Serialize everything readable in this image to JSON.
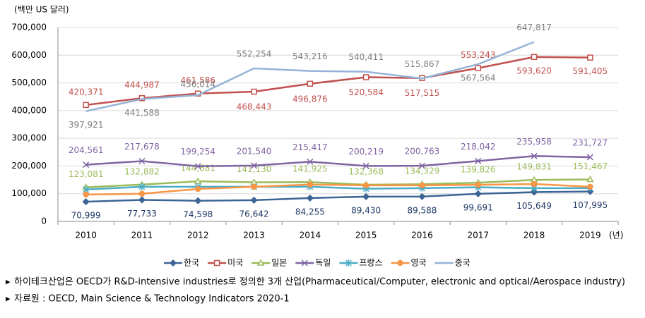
{
  "chart_data": {
    "type": "line",
    "y_unit": "(백만 US 달러)",
    "x_unit": "(년)",
    "categories": [
      "2010",
      "2011",
      "2012",
      "2013",
      "2014",
      "2015",
      "2016",
      "2017",
      "2018",
      "2019"
    ],
    "ylim": [
      0,
      700000
    ],
    "yticks": [
      0,
      {
        "value": 100000,
        "label": "100,000"
      },
      {
        "value": 200000,
        "label": "200,000"
      },
      {
        "value": 300000,
        "label": "300,000"
      },
      {
        "value": 400000,
        "label": "400,000"
      },
      {
        "value": 500000,
        "label": "500,000"
      },
      {
        "value": 600000,
        "label": "600,000"
      },
      {
        "value": 700000,
        "label": "700,000"
      }
    ],
    "grid": true,
    "legend": "bottom",
    "series": [
      {
        "name": "한국",
        "color": "#3c6496",
        "marker": "diamond",
        "values": [
          70999,
          77733,
          74598,
          76642,
          84255,
          89430,
          89588,
          99691,
          105649,
          107995
        ],
        "value_labels": [
          "70,999",
          "77,733",
          "74,598",
          "76,642",
          "84,255",
          "89,430",
          "89,588",
          "99,691",
          "105,649",
          "107,995"
        ]
      },
      {
        "name": "미국",
        "color": "#c0504d",
        "marker": "square",
        "values": [
          420371,
          444987,
          461586,
          468443,
          496876,
          520584,
          517515,
          553243,
          593620,
          591405
        ],
        "value_labels": [
          "420,371",
          "444,987",
          "461,586",
          "468,443",
          "496,876",
          "520,584",
          "517,515",
          "553,243",
          "593,620",
          "591,405"
        ]
      },
      {
        "name": "일본",
        "color": "#9bbb59",
        "marker": "triangle",
        "values": [
          123081,
          132882,
          144681,
          141130,
          141925,
          132368,
          134329,
          139826,
          149831,
          151467
        ],
        "value_labels": [
          "123,081",
          "132,882",
          "144,681",
          "141,130",
          "141,925",
          "132,368",
          "134,329",
          "139,826",
          "149,831",
          "151,467"
        ]
      },
      {
        "name": "독일",
        "color": "#8064a2",
        "marker": "x",
        "values": [
          204561,
          217678,
          199254,
          201540,
          215417,
          200219,
          200763,
          218042,
          235958,
          231727
        ],
        "value_labels": [
          "204,561",
          "217,678",
          "199,254",
          "201,540",
          "215,417",
          "200,219",
          "200,763",
          "218,042",
          "235,958",
          "231,727"
        ]
      },
      {
        "name": "프랑스",
        "color": "#4bacc6",
        "marker": "star",
        "values": [
          115000,
          125000,
          125000,
          125000,
          125000,
          118000,
          120000,
          123000,
          120000,
          120000
        ]
      },
      {
        "name": "영국",
        "color": "#f79646",
        "marker": "circle",
        "values": [
          97000,
          100000,
          117000,
          125000,
          133000,
          130000,
          130000,
          132000,
          135000,
          125000
        ]
      },
      {
        "name": "중국",
        "color": "#95b3d7",
        "marker": "none",
        "values": [
          397921,
          441588,
          456014,
          552254,
          543216,
          540411,
          515867,
          567564,
          647817,
          null
        ],
        "value_labels": [
          "397,921",
          "441,588",
          "456,014",
          "552,254",
          "543,216",
          "540,411",
          "515,867",
          "567,564",
          "647,817",
          null
        ]
      }
    ]
  },
  "notes": [
    "하이테크산업은 OECD가 R&D-intensive industries로 정의한 3개 산업(Pharmaceutical/Computer, electronic and optical/Aerospace industry)",
    "자료원 : OECD, Main Science & Technology Indicators 2020-1"
  ]
}
